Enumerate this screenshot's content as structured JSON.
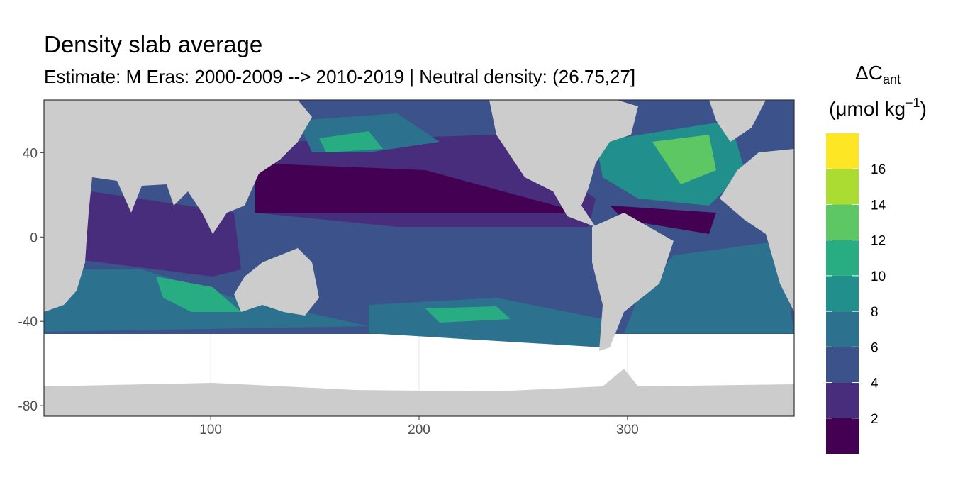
{
  "chart_data": {
    "type": "raster-map",
    "title": "Density slab average",
    "subtitle": "Estimate: M Eras: 2000-2009 --> 2010-2019 | Neutral density: (26.75,27]",
    "legend_title": {
      "symbol": "ΔC",
      "subscript": "ant",
      "unit": "(μmol kg",
      "exponent": "−1",
      "close": ")"
    },
    "xlim": [
      20,
      380
    ],
    "xticks": [
      100,
      200,
      300
    ],
    "ylim": [
      -85,
      65
    ],
    "yticks": [
      -80,
      -40,
      0,
      40
    ],
    "grid": true,
    "legend_lim": [
      0,
      18
    ],
    "legend_breaks": [
      2,
      4,
      6,
      8,
      10,
      12,
      14,
      16
    ],
    "colors": [
      "#440154",
      "#472D7B",
      "#3B528B",
      "#2C728E",
      "#21908C",
      "#27AD81",
      "#5DC863",
      "#AADC32",
      "#FDE725"
    ]
  }
}
